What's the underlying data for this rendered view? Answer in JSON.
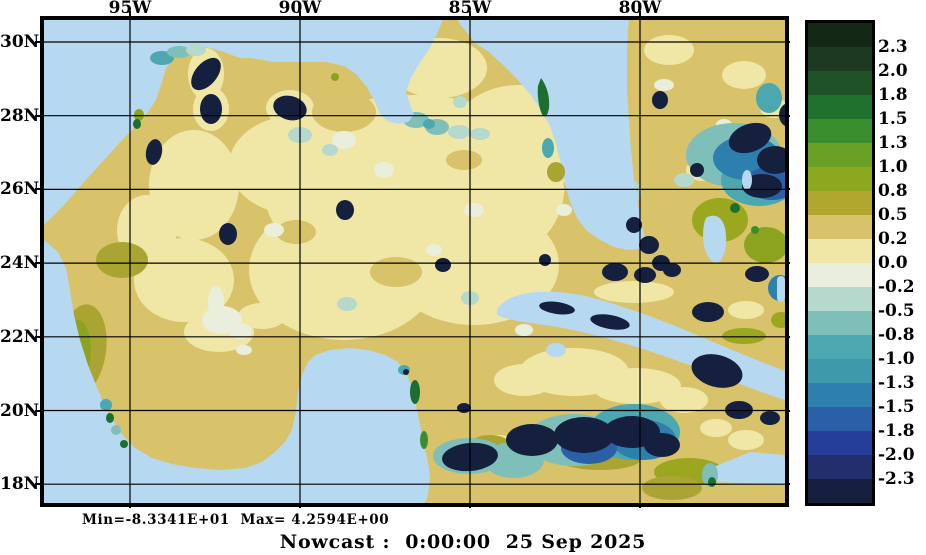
{
  "chart_data": {
    "type": "heatmap",
    "description": "Gridded nowcast field over the Gulf of Mexico / NW Caribbean with land masked in light blue",
    "x_axis": {
      "ticks": [
        "95W",
        "90W",
        "85W",
        "80W"
      ]
    },
    "y_axis": {
      "ticks": [
        "30N",
        "28N",
        "26N",
        "24N",
        "22N",
        "20N",
        "18N"
      ]
    },
    "grid": "on",
    "colorbar": {
      "position": "right",
      "labels": [
        "2.3",
        "2.0",
        "1.8",
        "1.5",
        "1.3",
        "1.0",
        "0.8",
        "0.5",
        "0.2",
        "0.0",
        "-0.2",
        "-0.5",
        "-0.8",
        "-1.0",
        "-1.3",
        "-1.5",
        "-1.8",
        "-2.0",
        "-2.3"
      ],
      "colors": [
        "#132815",
        "#1b3a20",
        "#1d5327",
        "#20702e",
        "#3b8e2d",
        "#68a125",
        "#8ba81f",
        "#b1a62e",
        "#d8c36a",
        "#f0e7a6",
        "#e9efdc",
        "#b5d9cd",
        "#7fbfba",
        "#4ba7b0",
        "#3c9aab",
        "#2d7fae",
        "#2960a8",
        "#253e9a",
        "#232f6d",
        "#15203e"
      ]
    },
    "stats_line": "Min=-8.3341E+01  Max= 4.2594E+00",
    "caption": "Nowcast :  0:00:00  25 Sep 2025",
    "palette": {
      "land_mask": "#b7d8f1",
      "ocean_base": "#d8c36a",
      "frame": "#000000"
    }
  }
}
